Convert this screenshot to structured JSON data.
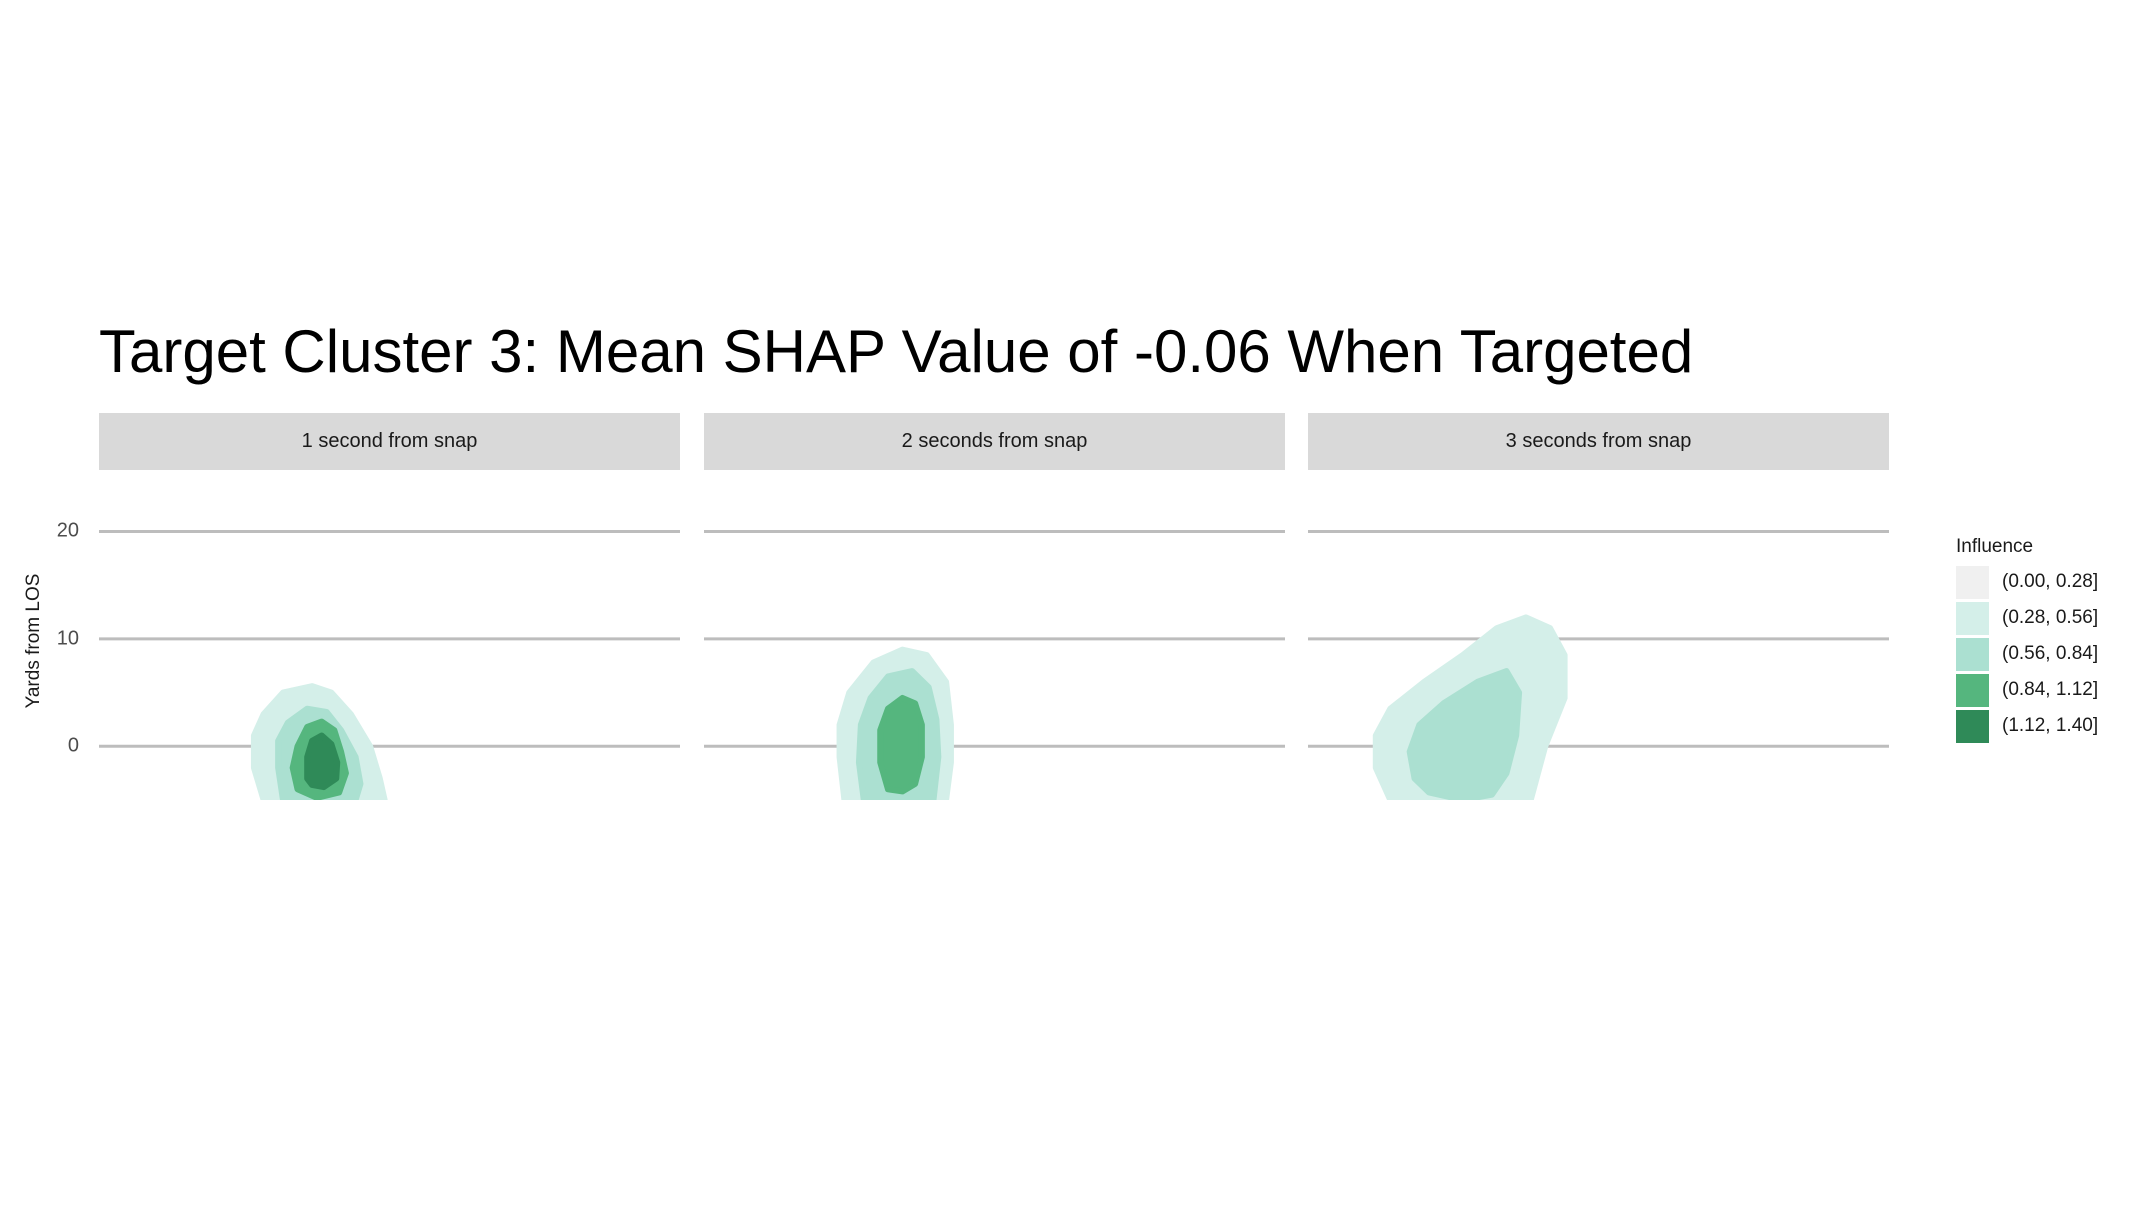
{
  "chart_data": {
    "type": "contour",
    "title": "Target Cluster 3: Mean SHAP Value of -0.06 When Targeted",
    "ylabel": "Yards from LOS",
    "xlabel": "",
    "yticks": [
      0,
      10,
      20
    ],
    "ylim": [
      -5,
      22
    ],
    "xlim": [
      -30,
      30
    ],
    "grid": "horizontal major lines",
    "legend": {
      "title": "Influence",
      "placement": "right",
      "entries": [
        {
          "label": "(0.00, 0.28]",
          "color": "#f0f0f0"
        },
        {
          "label": "(0.28, 0.56]",
          "color": "#d4efe9"
        },
        {
          "label": "(0.56, 0.84]",
          "color": "#abe0d1"
        },
        {
          "label": "(0.84, 1.12]",
          "color": "#55b67e"
        },
        {
          "label": "(1.12, 1.40]",
          "color": "#2f8a58"
        }
      ]
    },
    "facets": [
      {
        "label": "1 second from snap",
        "bands": [
          {
            "level": 1,
            "polygon": [
              [
                -13,
                -5
              ],
              [
                -14,
                -2
              ],
              [
                -14,
                1
              ],
              [
                -13,
                3
              ],
              [
                -11,
                5
              ],
              [
                -8,
                5.6
              ],
              [
                -6,
                5
              ],
              [
                -4,
                3
              ],
              [
                -2,
                0
              ],
              [
                -1,
                -3
              ],
              [
                -0.5,
                -5
              ]
            ]
          },
          {
            "level": 2,
            "polygon": [
              [
                -11,
                -5
              ],
              [
                -11.5,
                -2
              ],
              [
                -11.5,
                0.5
              ],
              [
                -10.5,
                2.2
              ],
              [
                -8.5,
                3.5
              ],
              [
                -6.5,
                3.2
              ],
              [
                -5,
                1.5
              ],
              [
                -3.5,
                -1
              ],
              [
                -3,
                -3.5
              ],
              [
                -3.5,
                -5
              ]
            ]
          },
          {
            "level": 3,
            "polygon": [
              [
                -9.5,
                -4
              ],
              [
                -10,
                -2
              ],
              [
                -9.5,
                0
              ],
              [
                -8.5,
                1.8
              ],
              [
                -7,
                2.3
              ],
              [
                -5.7,
                1.5
              ],
              [
                -5,
                -0.5
              ],
              [
                -4.5,
                -2.5
              ],
              [
                -5.2,
                -4.3
              ],
              [
                -7.5,
                -4.8
              ]
            ]
          },
          {
            "level": 4,
            "polygon": [
              [
                -8.5,
                -3
              ],
              [
                -8.5,
                -1
              ],
              [
                -8,
                0.5
              ],
              [
                -7,
                1
              ],
              [
                -6,
                0.2
              ],
              [
                -5.4,
                -1.5
              ],
              [
                -5.5,
                -3
              ],
              [
                -6.8,
                -3.8
              ],
              [
                -8,
                -3.6
              ]
            ]
          }
        ]
      },
      {
        "label": "2 seconds from snap",
        "bands": [
          {
            "level": 1,
            "polygon": [
              [
                -15.5,
                -5
              ],
              [
                -16,
                -1
              ],
              [
                -16,
                2
              ],
              [
                -15,
                5
              ],
              [
                -12.5,
                7.8
              ],
              [
                -9.5,
                9
              ],
              [
                -7,
                8.5
              ],
              [
                -5,
                6
              ],
              [
                -4.5,
                2
              ],
              [
                -4.5,
                -1.5
              ],
              [
                -5,
                -5
              ]
            ]
          },
          {
            "level": 2,
            "polygon": [
              [
                -13.5,
                -5
              ],
              [
                -14,
                -1.5
              ],
              [
                -13.8,
                2
              ],
              [
                -12.8,
                4.5
              ],
              [
                -11,
                6.5
              ],
              [
                -8.5,
                7
              ],
              [
                -6.8,
                5.5
              ],
              [
                -6,
                2.5
              ],
              [
                -5.8,
                -1
              ],
              [
                -6.3,
                -5
              ]
            ]
          },
          {
            "level": 3,
            "polygon": [
              [
                -11,
                -4
              ],
              [
                -11.8,
                -1.5
              ],
              [
                -11.8,
                1.5
              ],
              [
                -11,
                3.5
              ],
              [
                -9.5,
                4.5
              ],
              [
                -8.2,
                4
              ],
              [
                -7.5,
                2
              ],
              [
                -7.5,
                -1
              ],
              [
                -8.2,
                -3.5
              ],
              [
                -9.5,
                -4.2
              ]
            ]
          }
        ]
      },
      {
        "label": "3 seconds from snap",
        "bands": [
          {
            "level": 1,
            "polygon": [
              [
                -21.5,
                -5
              ],
              [
                -23,
                -2
              ],
              [
                -23,
                1
              ],
              [
                -21.5,
                3.5
              ],
              [
                -18,
                6
              ],
              [
                -14,
                8.5
              ],
              [
                -10.5,
                11
              ],
              [
                -7.5,
                12
              ],
              [
                -5,
                11
              ],
              [
                -3.5,
                8.5
              ],
              [
                -3.5,
                4.5
              ],
              [
                -5.5,
                0
              ],
              [
                -7,
                -5
              ]
            ]
          },
          {
            "level": 2,
            "polygon": [
              [
                -19,
                -3
              ],
              [
                -19.5,
                -0.5
              ],
              [
                -18.5,
                2
              ],
              [
                -16,
                4
              ],
              [
                -12.5,
                6
              ],
              [
                -9.5,
                7
              ],
              [
                -8.2,
                5
              ],
              [
                -8.5,
                1
              ],
              [
                -9.5,
                -2.5
              ],
              [
                -11,
                -4.5
              ],
              [
                -14,
                -5
              ],
              [
                -17.5,
                -4.3
              ]
            ]
          }
        ]
      }
    ]
  }
}
